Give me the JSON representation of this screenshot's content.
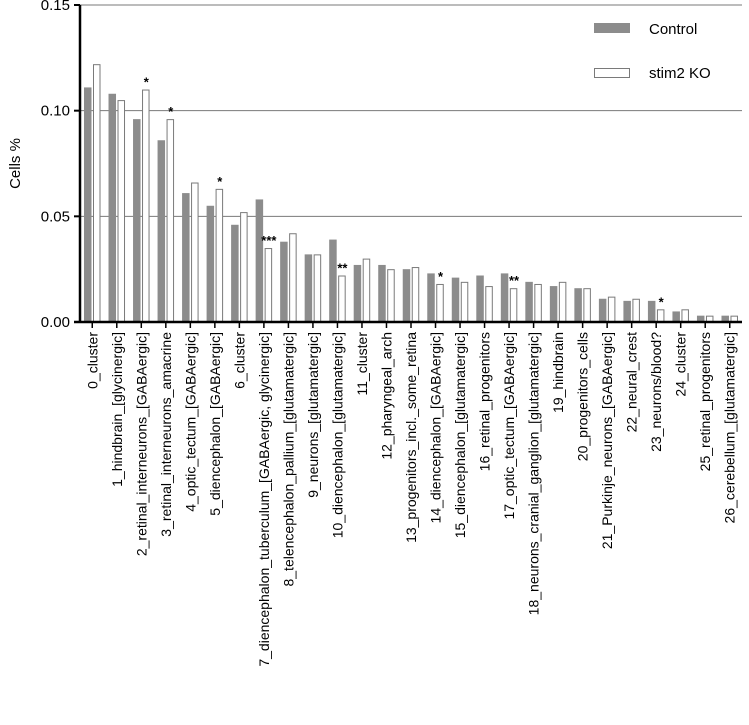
{
  "chart_data": {
    "type": "bar",
    "ylabel": "Cells %",
    "ylim": [
      0,
      0.15
    ],
    "yticks": [
      0.0,
      0.05,
      0.1,
      0.15
    ],
    "ytick_labels": [
      "0.00",
      "0.05",
      "0.10",
      "0.15"
    ],
    "grid": true,
    "legend_position": "top-right",
    "colors": {
      "control": "#8c8c8c",
      "ko_fill": "#ffffff",
      "ko_stroke": "#7a7a7a",
      "grid": "#7a7a7a"
    },
    "categories": [
      "0_cluster",
      "1_hindbrain_[glycinergic]",
      "2_retinal_interneurons_[GABAergic]",
      "3_retinal_interneurons_amacrine",
      "4_optic_tectum_[GABAergic]",
      "5_diencephalon_[GABAergic]",
      "6_cluster",
      "7_diencephalon_tuberculum_[GABAergic, glycinergic]",
      "8_telencephalon_pallium_[glutamatergic]",
      "9_neurons_[glutamatergic]",
      "10_diencephalon_[glutamatergic]",
      "11_cluster",
      "12_pharyngeal_arch",
      "13_progenitors_incl._some_retina",
      "14_diencephalon_[GABAergic]",
      "15_diencephalon_[glutamatergic]",
      "16_retinal_progenitors",
      "17_optic_tectum_[GABAergic]",
      "18_neurons_cranial_ganglion_[glutamatergic]",
      "19_hindbrain",
      "20_progenitors_cells",
      "21_Purkinje_neurons_[GABAergic]",
      "22_neural_crest",
      "23_neurons/blood?",
      "24_cluster",
      "25_retinal_progenitors",
      "26_cerebellum_[glutamatergic]"
    ],
    "series": [
      {
        "name": "Control",
        "values": [
          0.111,
          0.108,
          0.096,
          0.086,
          0.061,
          0.055,
          0.046,
          0.058,
          0.038,
          0.032,
          0.039,
          0.027,
          0.027,
          0.025,
          0.023,
          0.021,
          0.022,
          0.023,
          0.019,
          0.017,
          0.016,
          0.011,
          0.01,
          0.01,
          0.005,
          0.003,
          0.003
        ]
      },
      {
        "name": "stim2 KO",
        "values": [
          0.122,
          0.105,
          0.11,
          0.096,
          0.066,
          0.063,
          0.052,
          0.035,
          0.042,
          0.032,
          0.022,
          0.03,
          0.025,
          0.026,
          0.018,
          0.019,
          0.017,
          0.016,
          0.018,
          0.019,
          0.016,
          0.012,
          0.011,
          0.006,
          0.006,
          0.003,
          0.003
        ]
      }
    ],
    "annotations": [
      {
        "category_index": 2,
        "text": "*"
      },
      {
        "category_index": 3,
        "text": "*"
      },
      {
        "category_index": 5,
        "text": "*"
      },
      {
        "category_index": 7,
        "text": "***"
      },
      {
        "category_index": 10,
        "text": "**"
      },
      {
        "category_index": 14,
        "text": "*"
      },
      {
        "category_index": 17,
        "text": "**"
      },
      {
        "category_index": 23,
        "text": "*"
      }
    ]
  }
}
